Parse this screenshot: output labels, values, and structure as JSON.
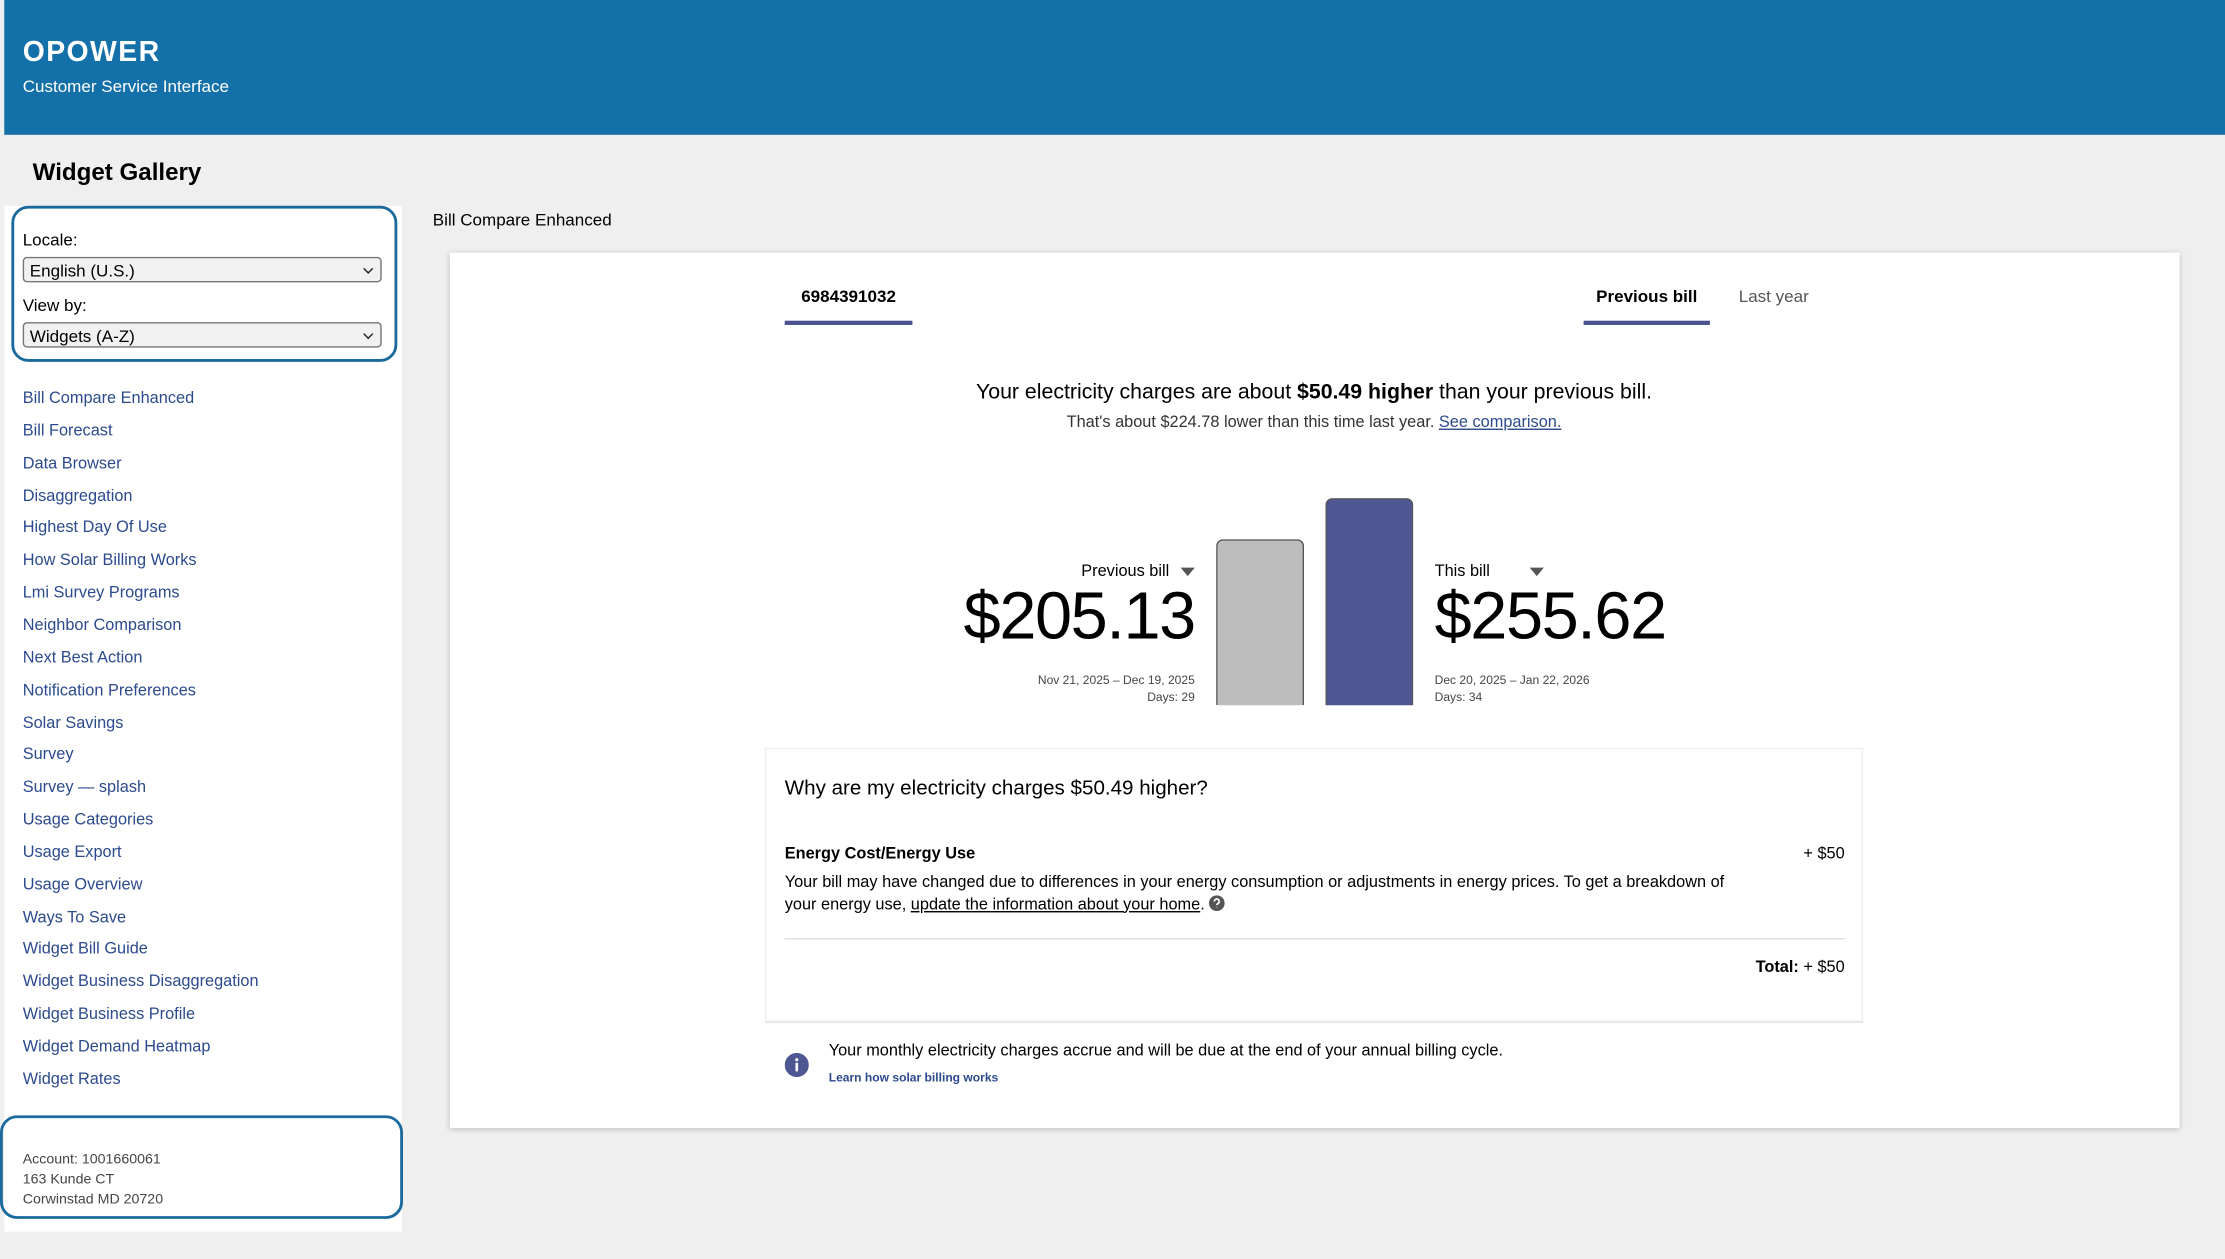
{
  "header": {
    "logo": "OPOWER",
    "subtitle": "Customer Service Interface"
  },
  "sidebar": {
    "title": "Widget Gallery",
    "locale_label": "Locale:",
    "locale_value": "English (U.S.)",
    "view_label": "View by:",
    "view_value": "Widgets (A-Z)",
    "links": [
      "Bill Compare Enhanced",
      "Bill Forecast",
      "Data Browser",
      "Disaggregation",
      "Highest Day Of Use",
      "How Solar Billing Works",
      "Lmi Survey Programs",
      "Neighbor Comparison",
      "Next Best Action",
      "Notification Preferences",
      "Solar Savings",
      "Survey",
      "Survey — splash",
      "Usage Categories",
      "Usage Export",
      "Usage Overview",
      "Ways To Save",
      "Widget Bill Guide",
      "Widget Business Disaggregation",
      "Widget Business Profile",
      "Widget Demand Heatmap",
      "Widget Rates"
    ],
    "account": [
      "Account: 1001660061",
      "163 Kunde CT",
      "Corwinstad MD 20720"
    ]
  },
  "widget": {
    "name": "Bill Compare Enhanced",
    "account_tab": "6984391032",
    "tabs": [
      "Previous bill",
      "Last year"
    ],
    "headline": {
      "before": "Your electricity charges are about ",
      "emphasis": "$50.49 higher",
      "after": " than your previous bill."
    },
    "subline": {
      "text": "That's about $224.78 lower than this time last year. ",
      "link": "See comparison."
    },
    "bills": [
      {
        "label": "Previous bill",
        "amount": 205.13,
        "amount_label": "$205.13",
        "dates": "Nov 21, 2025 – Dec 19, 2025",
        "days": "Days: 29",
        "color": "#bdbdbd"
      },
      {
        "label": "This bill",
        "amount": 255.62,
        "amount_label": "$255.62",
        "dates": "Dec 20, 2025 – Jan 22, 2026",
        "days": "Days: 34",
        "color": "#4f5793"
      }
    ],
    "why": {
      "title": "Why are my electricity charges $50.49 higher?",
      "item_name": "Energy Cost/Energy Use",
      "item_amount": "+ $50",
      "text_before": "Your bill may have changed due to differences in your energy consumption or adjustments in energy prices. To get a breakdown of your energy use, ",
      "link": "update the information about your home",
      "text_after": ".",
      "total_label": "Total:",
      "total": "+ $50"
    },
    "notice": {
      "text": "Your monthly electricity charges accrue and will be due at the end of your annual billing cycle.",
      "link": "Learn how solar billing works"
    }
  }
}
